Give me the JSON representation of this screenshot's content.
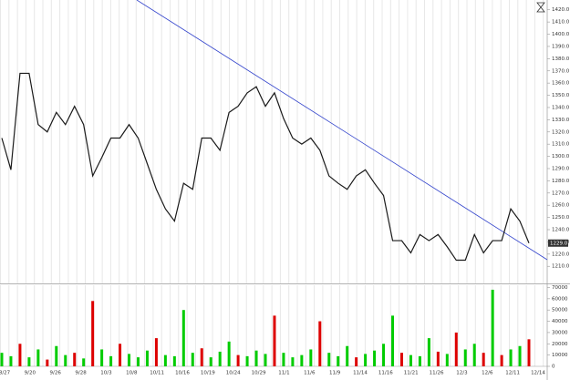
{
  "chart_data": [
    {
      "type": "line",
      "color": "#1a1a1a",
      "trend_color": "#3344cc",
      "values": [
        1315,
        1289,
        1368,
        1368,
        1326,
        1320,
        1336,
        1326,
        1341,
        1326,
        1284,
        1299,
        1315,
        1315,
        1326,
        1315,
        1294,
        1273,
        1257,
        1247,
        1278,
        1273,
        1315,
        1315,
        1305,
        1336,
        1341,
        1352,
        1357,
        1341,
        1352,
        1331,
        1315,
        1310,
        1315,
        1305,
        1284,
        1278,
        1273,
        1284,
        1289,
        1278,
        1268,
        1231,
        1231,
        1221,
        1236,
        1231,
        1236,
        1226,
        1215,
        1215,
        1236,
        1221,
        1231,
        1231,
        1257,
        1247,
        1229
      ],
      "last_price_label": "1229.0",
      "ylim": [
        1196,
        1428
      ],
      "yticks": [
        {
          "value": 1210,
          "label": "1210.0"
        },
        {
          "value": 1220,
          "label": "1220.0"
        },
        {
          "value": 1230,
          "label": "1230.0"
        },
        {
          "value": 1240,
          "label": "1240.0"
        },
        {
          "value": 1250,
          "label": "1250.0"
        },
        {
          "value": 1260,
          "label": "1260.0"
        },
        {
          "value": 1270,
          "label": "1270.0"
        },
        {
          "value": 1280,
          "label": "1280.0"
        },
        {
          "value": 1290,
          "label": "1290.0"
        },
        {
          "value": 1300,
          "label": "1300.0"
        },
        {
          "value": 1310,
          "label": "1310.0"
        },
        {
          "value": 1320,
          "label": "1320.0"
        },
        {
          "value": 1330,
          "label": "1330.0"
        },
        {
          "value": 1340,
          "label": "1340.0"
        },
        {
          "value": 1350,
          "label": "1350.0"
        },
        {
          "value": 1360,
          "label": "1360.0"
        },
        {
          "value": 1370,
          "label": "1370.0"
        },
        {
          "value": 1380,
          "label": "1380.0"
        },
        {
          "value": 1390,
          "label": "1390.0"
        },
        {
          "value": 1400,
          "label": "1400.0"
        },
        {
          "value": 1410,
          "label": "1410.0"
        },
        {
          "value": 1420,
          "label": "1420.0"
        }
      ]
    },
    {
      "type": "bar",
      "values": [
        12000,
        9000,
        20000,
        8000,
        15000,
        6000,
        18000,
        10000,
        12000,
        7000,
        58000,
        15000,
        9000,
        20000,
        11000,
        8000,
        14000,
        25000,
        10000,
        9000,
        50000,
        12000,
        16000,
        8000,
        13000,
        22000,
        10000,
        9000,
        14000,
        11000,
        45000,
        12000,
        8000,
        10000,
        15000,
        40000,
        12000,
        9000,
        18000,
        8000,
        11000,
        14000,
        20000,
        45000,
        12000,
        10000,
        9000,
        25000,
        13000,
        11000,
        30000,
        15000,
        20000,
        12000,
        68000,
        10000,
        15000,
        18000,
        24000
      ],
      "colors": [
        "#00cc00",
        "#00cc00",
        "#dd0000",
        "#00cc00",
        "#00cc00",
        "#dd0000",
        "#00cc00",
        "#00cc00",
        "#dd0000",
        "#00cc00",
        "#dd0000",
        "#00cc00",
        "#00cc00",
        "#dd0000",
        "#00cc00",
        "#00cc00",
        "#00cc00",
        "#dd0000",
        "#00cc00",
        "#00cc00",
        "#00cc00",
        "#00cc00",
        "#dd0000",
        "#00cc00",
        "#00cc00",
        "#00cc00",
        "#dd0000",
        "#00cc00",
        "#00cc00",
        "#00cc00",
        "#dd0000",
        "#00cc00",
        "#00cc00",
        "#00cc00",
        "#00cc00",
        "#dd0000",
        "#00cc00",
        "#00cc00",
        "#00cc00",
        "#dd0000",
        "#00cc00",
        "#00cc00",
        "#00cc00",
        "#00cc00",
        "#dd0000",
        "#00cc00",
        "#00cc00",
        "#00cc00",
        "#dd0000",
        "#00cc00",
        "#dd0000",
        "#00cc00",
        "#00cc00",
        "#dd0000",
        "#00cc00",
        "#dd0000",
        "#00cc00",
        "#00cc00",
        "#dd0000"
      ],
      "ylim": [
        0,
        72000
      ],
      "yticks": [
        0,
        10000,
        20000,
        30000,
        40000,
        50000,
        60000,
        70000
      ],
      "xtick_labels": [
        "8/27",
        "9/20",
        "9/26",
        "9/28",
        "10/3",
        "10/8",
        "10/11",
        "10/16",
        "10/19",
        "10/24",
        "10/29",
        "11/1",
        "11/6",
        "11/9",
        "11/14",
        "11/16",
        "11/21",
        "11/26",
        "12/3",
        "12/6",
        "12/11",
        "12/14"
      ]
    }
  ]
}
